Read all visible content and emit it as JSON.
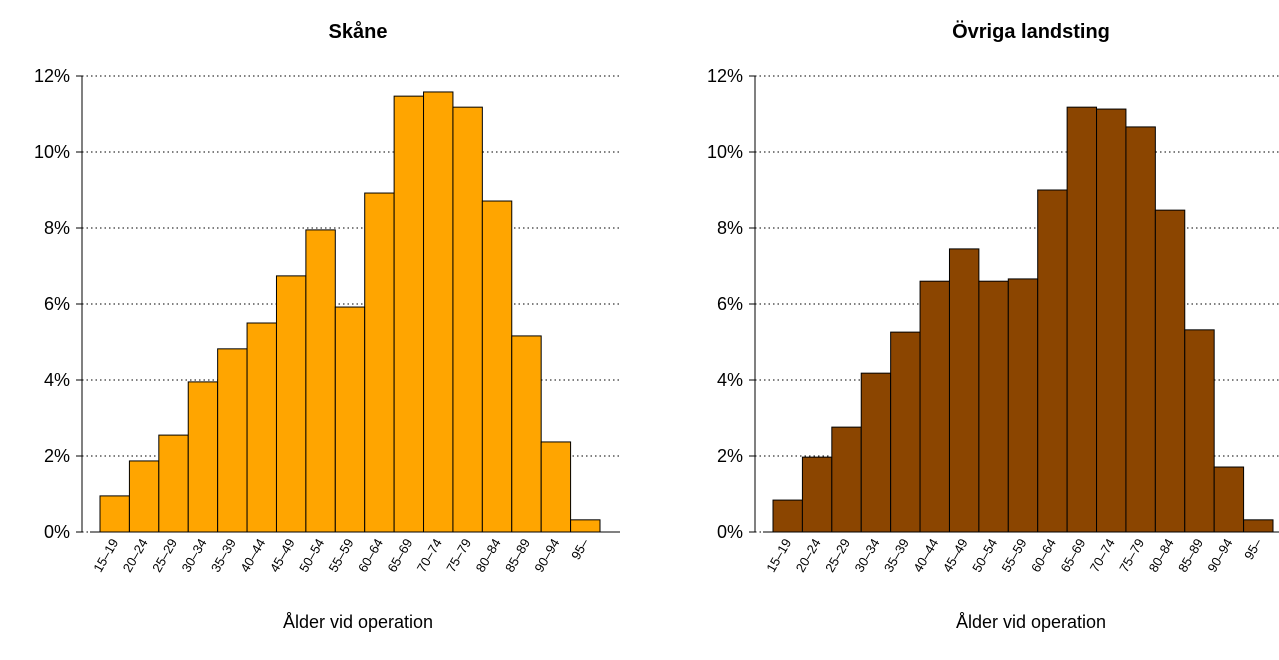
{
  "chart_data": [
    {
      "type": "bar",
      "title": "Skåne",
      "x_label": "Ålder vid operation",
      "color": "#FFA500",
      "categories": [
        "15–19",
        "20–24",
        "25–29",
        "30–34",
        "35–39",
        "40–44",
        "45–49",
        "50–54",
        "55–59",
        "60–64",
        "65–69",
        "70–74",
        "75–79",
        "80–84",
        "85–89",
        "90–94",
        "95–"
      ],
      "values": [
        0.95,
        1.87,
        2.55,
        3.95,
        4.82,
        5.5,
        6.74,
        7.95,
        5.92,
        8.92,
        11.47,
        11.58,
        11.18,
        8.71,
        5.16,
        2.37,
        0.32
      ],
      "ylim": [
        0,
        12
      ],
      "yticks": [
        {
          "value": 0,
          "label": "0%"
        },
        {
          "value": 2,
          "label": "2%"
        },
        {
          "value": 4,
          "label": "4%"
        },
        {
          "value": 6,
          "label": "6%"
        },
        {
          "value": 8,
          "label": "8%"
        },
        {
          "value": 10,
          "label": "10%"
        },
        {
          "value": 12,
          "label": "12%"
        }
      ],
      "grid": true
    },
    {
      "type": "bar",
      "title": "Övriga landsting",
      "x_label": "Ålder vid operation",
      "color": "#8B4500",
      "categories": [
        "15–19",
        "20–24",
        "25–29",
        "30–34",
        "35–39",
        "40–44",
        "45–49",
        "50–54",
        "55–59",
        "60–64",
        "65–69",
        "70–74",
        "75–79",
        "80–84",
        "85–89",
        "90–94",
        "95–"
      ],
      "values": [
        0.84,
        1.97,
        2.76,
        4.18,
        5.26,
        6.6,
        7.45,
        6.6,
        6.66,
        9.0,
        11.18,
        11.13,
        10.66,
        8.47,
        5.32,
        1.71,
        0.32
      ],
      "ylim": [
        0,
        12
      ],
      "yticks": [
        {
          "value": 0,
          "label": "0%"
        },
        {
          "value": 2,
          "label": "2%"
        },
        {
          "value": 4,
          "label": "4%"
        },
        {
          "value": 6,
          "label": "6%"
        },
        {
          "value": 8,
          "label": "8%"
        },
        {
          "value": 10,
          "label": "10%"
        },
        {
          "value": 12,
          "label": "12%"
        }
      ],
      "grid": true
    }
  ]
}
